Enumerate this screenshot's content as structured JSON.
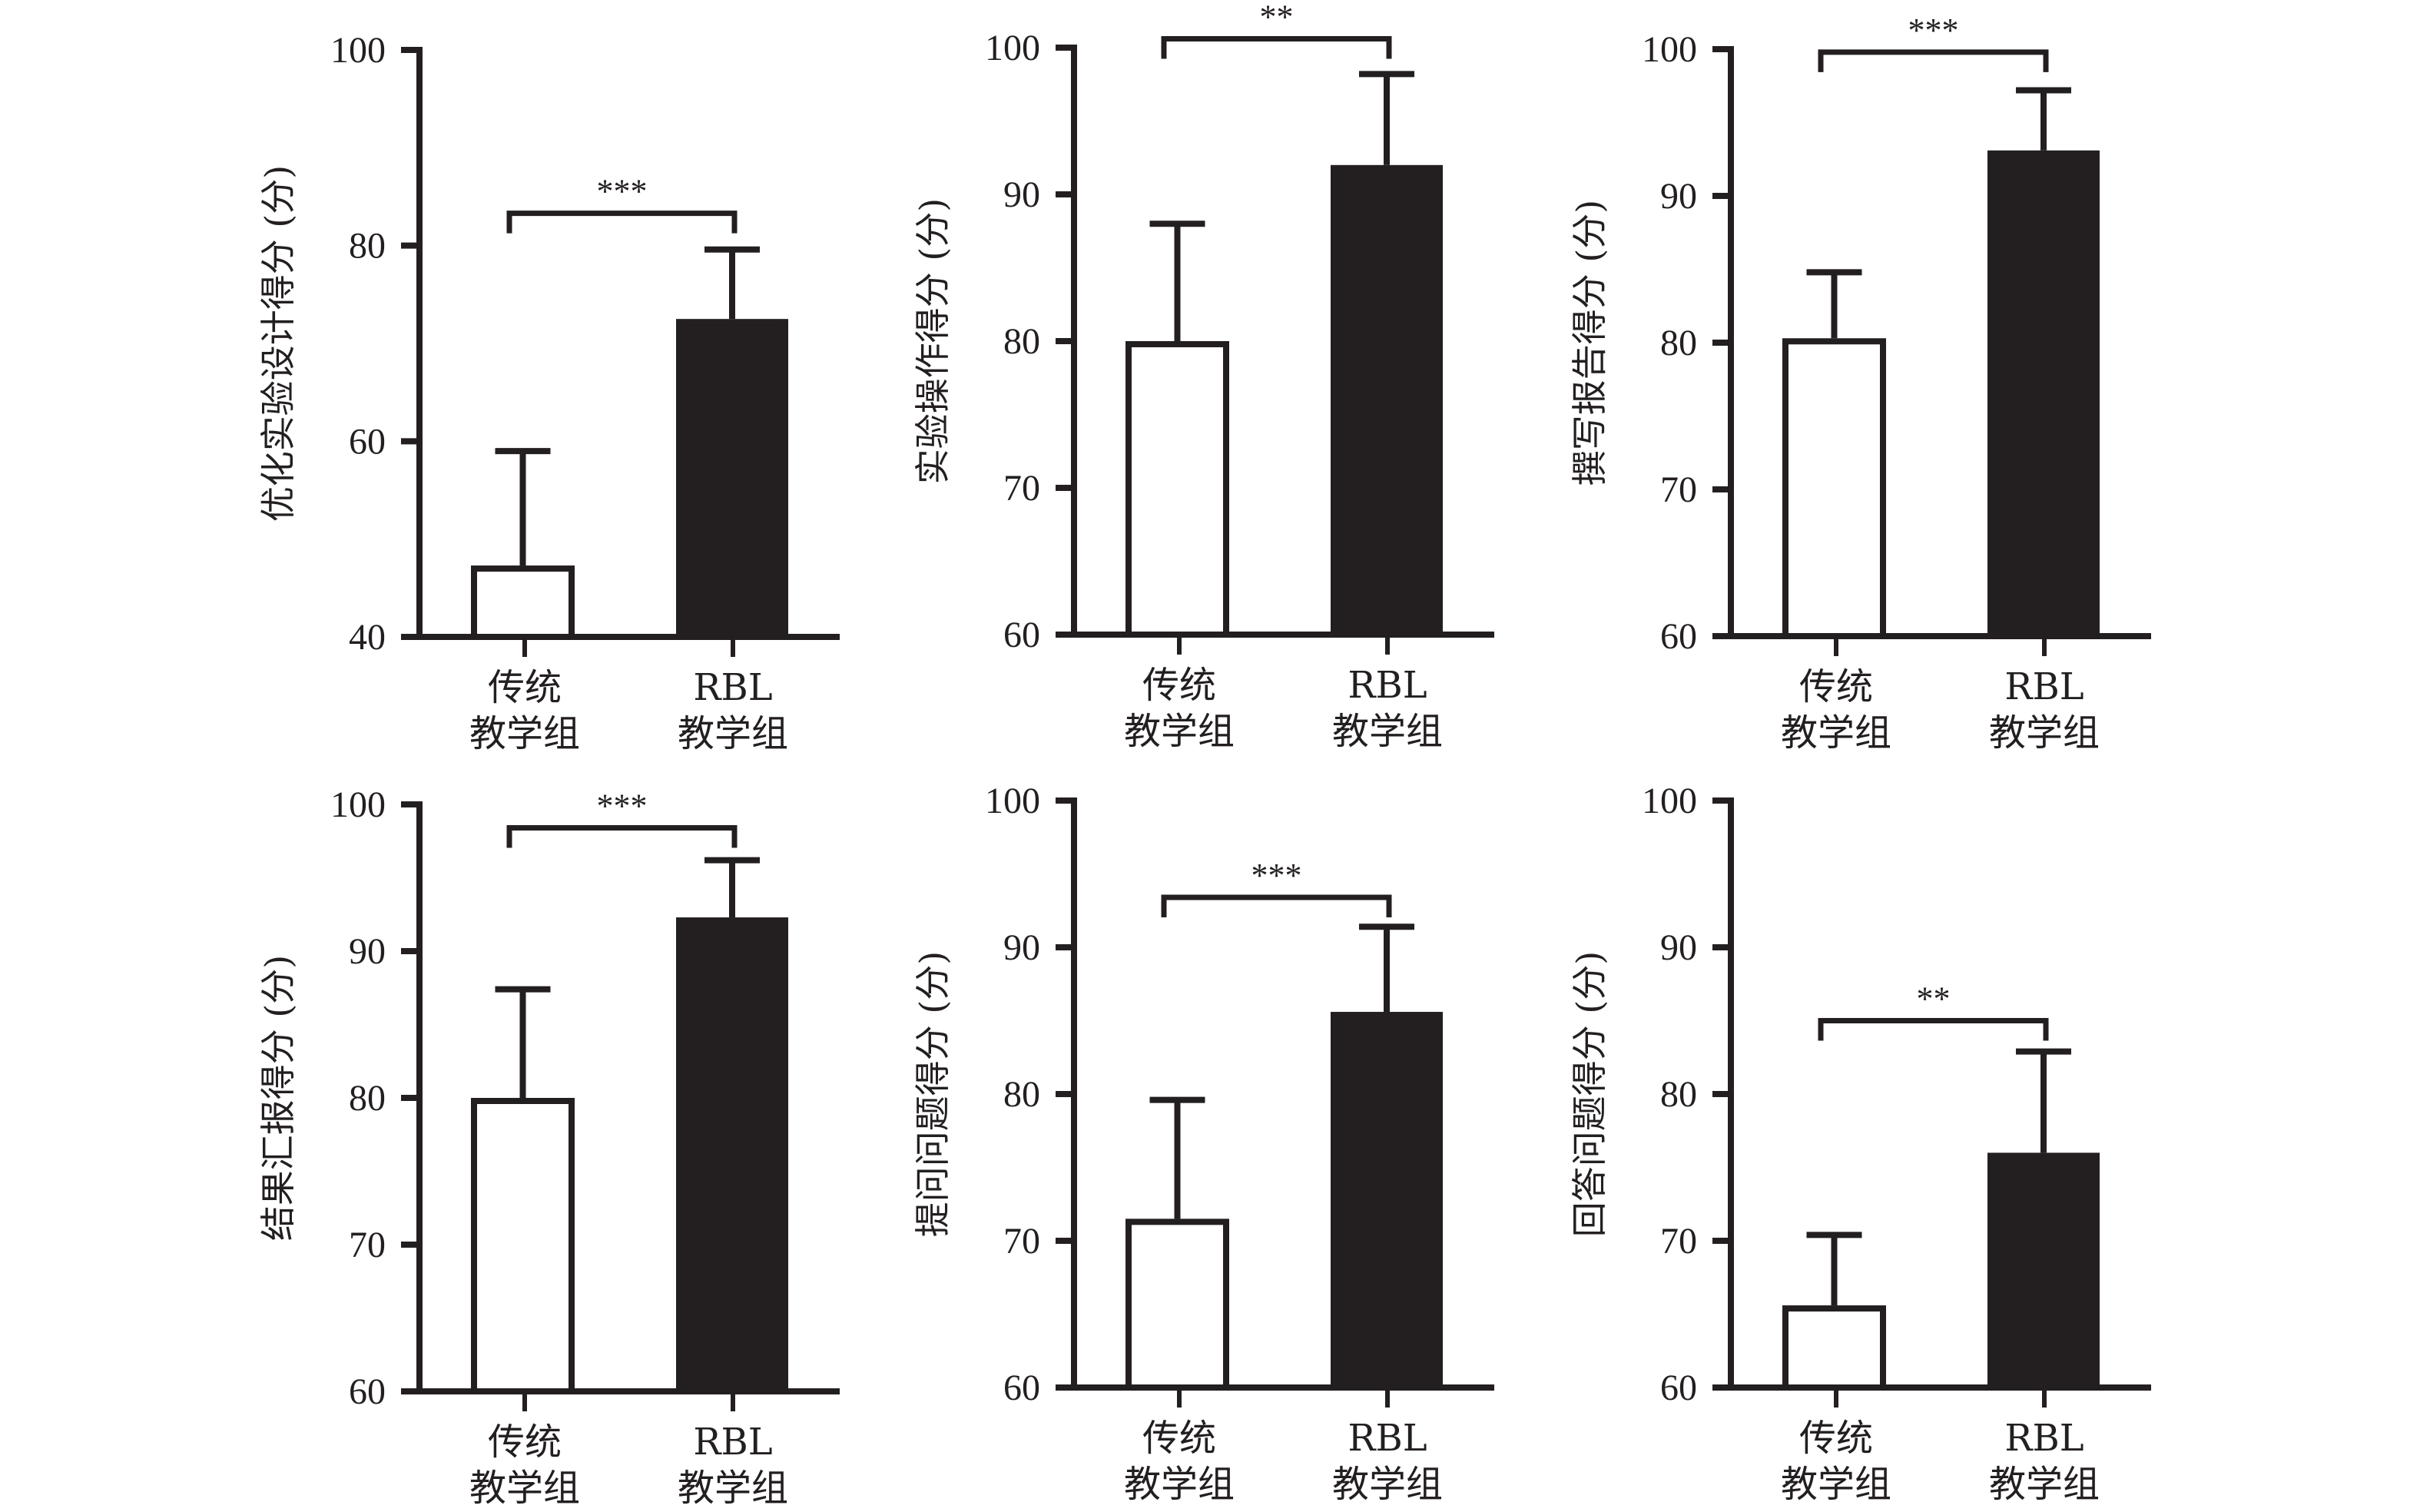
{
  "colors": {
    "ink": "#231f20",
    "control_fill": "#ffffff",
    "rbl_fill": "#231f20",
    "background": "#ffffff"
  },
  "chart_data": [
    {
      "type": "bar",
      "title": "",
      "xlabel": "",
      "ylabel": "优化实验设计得分 (分)",
      "ylim": [
        40,
        100
      ],
      "yticks": [
        "40",
        "60",
        "80",
        "100"
      ],
      "ytick_values": [
        40,
        60,
        80,
        100
      ],
      "categories": [
        [
          "传统",
          "教学组"
        ],
        [
          "RBL",
          "教学组"
        ]
      ],
      "values": [
        47.3,
        72.5
      ],
      "error_upper": [
        59.0,
        79.6
      ],
      "significance": "***",
      "bracket_y": 83.3,
      "grid": false
    },
    {
      "type": "bar",
      "title": "",
      "xlabel": "",
      "ylabel": "实验操作得分 (分)",
      "ylim": [
        60,
        100
      ],
      "yticks": [
        "60",
        "70",
        "80",
        "90",
        "100"
      ],
      "ytick_values": [
        60,
        70,
        80,
        90,
        100
      ],
      "categories": [
        [
          "传统",
          "教学组"
        ],
        [
          "RBL",
          "教学组"
        ]
      ],
      "values": [
        80.0,
        92.0
      ],
      "error_upper": [
        88.0,
        98.2
      ],
      "significance": "**",
      "bracket_y": 100.6,
      "grid": false
    },
    {
      "type": "bar",
      "title": "",
      "xlabel": "",
      "ylabel": "撰写报告得分 (分)",
      "ylim": [
        60,
        100
      ],
      "yticks": [
        "60",
        "70",
        "80",
        "90",
        "100"
      ],
      "ytick_values": [
        60,
        70,
        80,
        90,
        100
      ],
      "categories": [
        [
          "传统",
          "教学组"
        ],
        [
          "RBL",
          "教学组"
        ]
      ],
      "values": [
        80.3,
        93.1
      ],
      "error_upper": [
        84.8,
        97.2
      ],
      "significance": "***",
      "bracket_y": 99.8,
      "grid": false
    },
    {
      "type": "bar",
      "title": "",
      "xlabel": "",
      "ylabel": "结果汇报得分 (分)",
      "ylim": [
        60,
        100
      ],
      "yticks": [
        "60",
        "70",
        "80",
        "90",
        "100"
      ],
      "ytick_values": [
        60,
        70,
        80,
        90,
        100
      ],
      "categories": [
        [
          "传统",
          "教学组"
        ],
        [
          "RBL",
          "教学组"
        ]
      ],
      "values": [
        80.0,
        92.3
      ],
      "error_upper": [
        87.4,
        96.2
      ],
      "significance": "***",
      "bracket_y": 98.4,
      "grid": false
    },
    {
      "type": "bar",
      "title": "",
      "xlabel": "",
      "ylabel": "提问问题得分 (分)",
      "ylim": [
        60,
        100
      ],
      "yticks": [
        "60",
        "70",
        "80",
        "90",
        "100"
      ],
      "ytick_values": [
        60,
        70,
        80,
        90,
        100
      ],
      "categories": [
        [
          "传统",
          "教学组"
        ],
        [
          "RBL",
          "教学组"
        ]
      ],
      "values": [
        71.5,
        85.6
      ],
      "error_upper": [
        79.6,
        91.4
      ],
      "significance": "***",
      "bracket_y": 93.4,
      "grid": false
    },
    {
      "type": "bar",
      "title": "",
      "xlabel": "",
      "ylabel": "回答问题得分 (分)",
      "ylim": [
        60,
        100
      ],
      "yticks": [
        "60",
        "70",
        "80",
        "90",
        "100"
      ],
      "ytick_values": [
        60,
        70,
        80,
        90,
        100
      ],
      "categories": [
        [
          "传统",
          "教学组"
        ],
        [
          "RBL",
          "教学组"
        ]
      ],
      "values": [
        65.6,
        76.0
      ],
      "error_upper": [
        70.4,
        82.9
      ],
      "significance": "**",
      "bracket_y": 85.0,
      "grid": false
    }
  ]
}
